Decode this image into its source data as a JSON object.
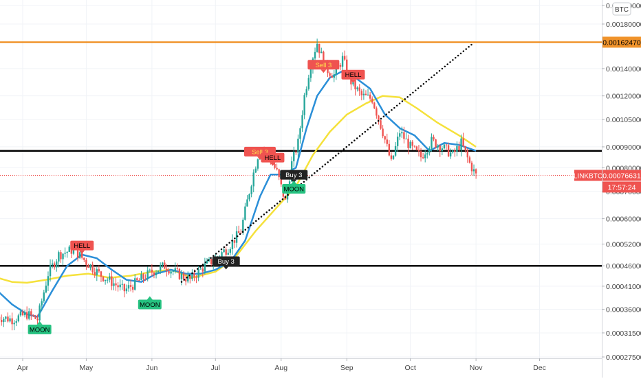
{
  "chart_data": {
    "type": "candlestick",
    "symbol": "LINKBTC",
    "currency": "BTC",
    "countdown": "17:57:24",
    "last_price": 0.00076631,
    "x_axis": {
      "labels": [
        {
          "label": "Apr",
          "date": "2020-04-01"
        },
        {
          "label": "May",
          "date": "2020-05-01"
        },
        {
          "label": "Jun",
          "date": "2020-06-01"
        },
        {
          "label": "Jul",
          "date": "2020-07-01"
        },
        {
          "label": "Aug",
          "date": "2020-08-01"
        },
        {
          "label": "Sep",
          "date": "2020-09-01"
        },
        {
          "label": "Oct",
          "date": "2020-10-01"
        },
        {
          "label": "Nov",
          "date": "2020-11-01"
        },
        {
          "label": "Dec",
          "date": "2020-12-01"
        }
      ]
    },
    "y_axis": {
      "scale": "log",
      "ticks": [
        0.000275,
        0.000315,
        0.00036,
        0.00041,
        0.00046,
        0.00052,
        0.0006,
        0.0007,
        0.0008,
        0.0009,
        0.00105,
        0.0012,
        0.0014,
        0.0018,
        0.002
      ],
      "tick_labels": [
        "0.00027500",
        "0.00031500",
        "0.00036000",
        "0.00041000",
        "0.00046000",
        "0.00052000",
        "0.00060000",
        "0.00070000",
        "0.00080000",
        "0.00090000",
        "0.00105000",
        "0.00120000",
        "0.00140000",
        "0.00180000",
        "0.00200000"
      ]
    },
    "horizontal_lines": [
      {
        "value": 0.0016247,
        "label": "0.00162470",
        "color": "#f0932b"
      },
      {
        "value": 0.00088,
        "color": "#000000"
      },
      {
        "value": 0.00046,
        "color": "#000000"
      }
    ],
    "trendline": {
      "start": {
        "date": "2020-06-15",
        "value": 0.00042
      },
      "end": {
        "date": "2020-10-31",
        "value": 0.00162
      },
      "style": "dotted"
    },
    "price_series": [
      {
        "date": "2020-03-20",
        "value": 0.000345
      },
      {
        "date": "2020-03-27",
        "value": 0.00034
      },
      {
        "date": "2020-04-03",
        "value": 0.00035
      },
      {
        "date": "2020-04-08",
        "value": 0.00034
      },
      {
        "date": "2020-04-13",
        "value": 0.00044
      },
      {
        "date": "2020-04-18",
        "value": 0.00049
      },
      {
        "date": "2020-04-25",
        "value": 0.000505
      },
      {
        "date": "2020-05-01",
        "value": 0.00047
      },
      {
        "date": "2020-05-07",
        "value": 0.00044
      },
      {
        "date": "2020-05-13",
        "value": 0.00042
      },
      {
        "date": "2020-05-19",
        "value": 0.0004
      },
      {
        "date": "2020-05-25",
        "value": 0.00042
      },
      {
        "date": "2020-06-01",
        "value": 0.000445
      },
      {
        "date": "2020-06-07",
        "value": 0.00046
      },
      {
        "date": "2020-06-13",
        "value": 0.00044
      },
      {
        "date": "2020-06-19",
        "value": 0.000425
      },
      {
        "date": "2020-06-25",
        "value": 0.000455
      },
      {
        "date": "2020-07-01",
        "value": 0.00048
      },
      {
        "date": "2020-07-07",
        "value": 0.00051
      },
      {
        "date": "2020-07-13",
        "value": 0.00056
      },
      {
        "date": "2020-07-18",
        "value": 0.00074
      },
      {
        "date": "2020-07-22",
        "value": 0.0009
      },
      {
        "date": "2020-07-26",
        "value": 0.00086
      },
      {
        "date": "2020-07-30",
        "value": 0.00078
      },
      {
        "date": "2020-08-03",
        "value": 0.00066
      },
      {
        "date": "2020-08-06",
        "value": 0.00082
      },
      {
        "date": "2020-08-09",
        "value": 0.00092
      },
      {
        "date": "2020-08-12",
        "value": 0.0012
      },
      {
        "date": "2020-08-15",
        "value": 0.00145
      },
      {
        "date": "2020-08-18",
        "value": 0.00162
      },
      {
        "date": "2020-08-22",
        "value": 0.0014
      },
      {
        "date": "2020-08-26",
        "value": 0.00135
      },
      {
        "date": "2020-08-30",
        "value": 0.00148
      },
      {
        "date": "2020-09-03",
        "value": 0.0013
      },
      {
        "date": "2020-09-08",
        "value": 0.0012
      },
      {
        "date": "2020-09-13",
        "value": 0.00118
      },
      {
        "date": "2020-09-18",
        "value": 0.00098
      },
      {
        "date": "2020-09-22",
        "value": 0.00082
      },
      {
        "date": "2020-09-26",
        "value": 0.00098
      },
      {
        "date": "2020-10-01",
        "value": 0.0009
      },
      {
        "date": "2020-10-06",
        "value": 0.00085
      },
      {
        "date": "2020-10-11",
        "value": 0.00093
      },
      {
        "date": "2020-10-16",
        "value": 0.0009
      },
      {
        "date": "2020-10-21",
        "value": 0.00086
      },
      {
        "date": "2020-10-25",
        "value": 0.00092
      },
      {
        "date": "2020-10-29",
        "value": 0.00082
      },
      {
        "date": "2020-11-01",
        "value": 0.000766
      }
    ],
    "ma_fast": {
      "color": "#2b8fd8",
      "points": [
        {
          "date": "2020-03-20",
          "value": 0.0004
        },
        {
          "date": "2020-03-27",
          "value": 0.00037
        },
        {
          "date": "2020-04-03",
          "value": 0.00035
        },
        {
          "date": "2020-04-08",
          "value": 0.000345
        },
        {
          "date": "2020-04-15",
          "value": 0.0004
        },
        {
          "date": "2020-04-22",
          "value": 0.00046
        },
        {
          "date": "2020-04-29",
          "value": 0.00049
        },
        {
          "date": "2020-05-06",
          "value": 0.00048
        },
        {
          "date": "2020-05-13",
          "value": 0.00045
        },
        {
          "date": "2020-05-20",
          "value": 0.000425
        },
        {
          "date": "2020-05-27",
          "value": 0.00042
        },
        {
          "date": "2020-06-03",
          "value": 0.00044
        },
        {
          "date": "2020-06-10",
          "value": 0.00045
        },
        {
          "date": "2020-06-17",
          "value": 0.00044
        },
        {
          "date": "2020-06-24",
          "value": 0.00044
        },
        {
          "date": "2020-07-01",
          "value": 0.00045
        },
        {
          "date": "2020-07-08",
          "value": 0.00047
        },
        {
          "date": "2020-07-15",
          "value": 0.00053
        },
        {
          "date": "2020-07-22",
          "value": 0.00068
        },
        {
          "date": "2020-07-27",
          "value": 0.00077
        },
        {
          "date": "2020-08-02",
          "value": 0.00077
        },
        {
          "date": "2020-08-08",
          "value": 0.0008
        },
        {
          "date": "2020-08-13",
          "value": 0.001
        },
        {
          "date": "2020-08-18",
          "value": 0.0012
        },
        {
          "date": "2020-08-24",
          "value": 0.00133
        },
        {
          "date": "2020-08-30",
          "value": 0.00138
        },
        {
          "date": "2020-09-05",
          "value": 0.00133
        },
        {
          "date": "2020-09-12",
          "value": 0.00125
        },
        {
          "date": "2020-09-19",
          "value": 0.00108
        },
        {
          "date": "2020-09-26",
          "value": 0.001
        },
        {
          "date": "2020-10-03",
          "value": 0.00096
        },
        {
          "date": "2020-10-10",
          "value": 0.00088
        },
        {
          "date": "2020-10-17",
          "value": 0.00092
        },
        {
          "date": "2020-10-24",
          "value": 0.00091
        },
        {
          "date": "2020-11-01",
          "value": 0.00088
        }
      ]
    },
    "ma_slow": {
      "color": "#f5e13b",
      "points": [
        {
          "date": "2020-03-20",
          "value": 0.00043
        },
        {
          "date": "2020-03-27",
          "value": 0.00042
        },
        {
          "date": "2020-04-03",
          "value": 0.000418
        },
        {
          "date": "2020-04-12",
          "value": 0.000425
        },
        {
          "date": "2020-04-22",
          "value": 0.000435
        },
        {
          "date": "2020-05-02",
          "value": 0.00044
        },
        {
          "date": "2020-05-12",
          "value": 0.00043
        },
        {
          "date": "2020-05-22",
          "value": 0.000435
        },
        {
          "date": "2020-06-01",
          "value": 0.000445
        },
        {
          "date": "2020-06-10",
          "value": 0.00045
        },
        {
          "date": "2020-06-20",
          "value": 0.00043
        },
        {
          "date": "2020-07-01",
          "value": 0.000445
        },
        {
          "date": "2020-07-10",
          "value": 0.00048
        },
        {
          "date": "2020-07-20",
          "value": 0.00056
        },
        {
          "date": "2020-07-30",
          "value": 0.00064
        },
        {
          "date": "2020-08-08",
          "value": 0.00072
        },
        {
          "date": "2020-08-16",
          "value": 0.00086
        },
        {
          "date": "2020-08-24",
          "value": 0.00098
        },
        {
          "date": "2020-09-01",
          "value": 0.00108
        },
        {
          "date": "2020-09-10",
          "value": 0.00115
        },
        {
          "date": "2020-09-18",
          "value": 0.0012
        },
        {
          "date": "2020-09-26",
          "value": 0.00119
        },
        {
          "date": "2020-10-04",
          "value": 0.00112
        },
        {
          "date": "2020-10-14",
          "value": 0.00103
        },
        {
          "date": "2020-10-24",
          "value": 0.00096
        },
        {
          "date": "2020-11-01",
          "value": 0.0009
        }
      ]
    },
    "signals": [
      {
        "label": "MOON",
        "date": "2020-04-09",
        "value": 0.00033,
        "type": "moon"
      },
      {
        "label": "HELL",
        "date": "2020-04-29",
        "value": 0.00053,
        "type": "hell"
      },
      {
        "label": "MOON",
        "date": "2020-05-31",
        "value": 0.00038,
        "type": "moon"
      },
      {
        "label": "Buy 3",
        "date": "2020-07-06",
        "value": 0.000485,
        "type": "buy"
      },
      {
        "label": "Sell 3",
        "date": "2020-07-22",
        "value": 0.0009,
        "type": "sell"
      },
      {
        "label": "HELL",
        "date": "2020-07-28",
        "value": 0.00087,
        "type": "hell"
      },
      {
        "label": "Buy 3",
        "date": "2020-08-07",
        "value": 0.00079,
        "type": "buy"
      },
      {
        "label": "MOON",
        "date": "2020-08-07",
        "value": 0.00073,
        "type": "moon"
      },
      {
        "label": "Sell 3",
        "date": "2020-08-21",
        "value": 0.00147,
        "type": "sell"
      },
      {
        "label": "HELL",
        "date": "2020-09-04",
        "value": 0.00139,
        "type": "hell"
      }
    ],
    "colors": {
      "up": "#26a69a",
      "down": "#ef5350",
      "moon": "#26c281",
      "hell": "#ef5350",
      "sell": "#f0932b",
      "buy": "#222222",
      "axis_text": "#444444",
      "price_tag": "#ef5350",
      "orange_line": "#f0932b"
    }
  }
}
